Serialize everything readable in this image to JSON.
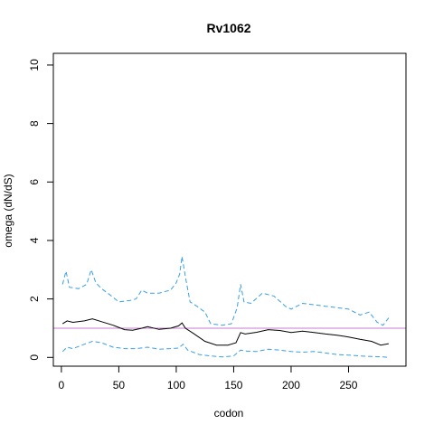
{
  "chart_data": {
    "type": "line",
    "title": "Rv1062",
    "xlabel": "codon",
    "ylabel": "omega (dN/dS)",
    "xlim": [
      -7,
      300
    ],
    "ylim": [
      -0.3,
      10.4
    ],
    "x_ticks": [
      0,
      50,
      100,
      150,
      200,
      250
    ],
    "y_ticks": [
      0,
      2,
      4,
      6,
      8,
      10
    ],
    "grid": false,
    "reference_line": {
      "y": 1,
      "color": "#c77dd1"
    },
    "series": [
      {
        "role": "estimate",
        "color": "#000000",
        "dash": "solid",
        "points": [
          [
            1,
            1.15
          ],
          [
            5,
            1.25
          ],
          [
            10,
            1.2
          ],
          [
            20,
            1.25
          ],
          [
            27,
            1.32
          ],
          [
            35,
            1.22
          ],
          [
            45,
            1.1
          ],
          [
            55,
            0.95
          ],
          [
            62,
            0.93
          ],
          [
            70,
            1.0
          ],
          [
            75,
            1.05
          ],
          [
            85,
            0.96
          ],
          [
            95,
            1.0
          ],
          [
            102,
            1.08
          ],
          [
            105,
            1.18
          ],
          [
            108,
            1.0
          ],
          [
            115,
            0.82
          ],
          [
            125,
            0.55
          ],
          [
            135,
            0.42
          ],
          [
            145,
            0.42
          ],
          [
            152,
            0.5
          ],
          [
            156,
            0.85
          ],
          [
            160,
            0.8
          ],
          [
            170,
            0.86
          ],
          [
            180,
            0.95
          ],
          [
            190,
            0.92
          ],
          [
            200,
            0.85
          ],
          [
            210,
            0.9
          ],
          [
            220,
            0.85
          ],
          [
            230,
            0.8
          ],
          [
            240,
            0.76
          ],
          [
            250,
            0.7
          ],
          [
            260,
            0.62
          ],
          [
            270,
            0.55
          ],
          [
            278,
            0.42
          ],
          [
            285,
            0.47
          ]
        ]
      },
      {
        "role": "upper-bound",
        "color": "#3c9ee0",
        "dash": "dashed",
        "points": [
          [
            1,
            2.5
          ],
          [
            4,
            2.95
          ],
          [
            7,
            2.4
          ],
          [
            15,
            2.35
          ],
          [
            22,
            2.5
          ],
          [
            26,
            3.0
          ],
          [
            30,
            2.55
          ],
          [
            35,
            2.35
          ],
          [
            42,
            2.15
          ],
          [
            50,
            1.9
          ],
          [
            60,
            1.95
          ],
          [
            65,
            2.0
          ],
          [
            70,
            2.3
          ],
          [
            75,
            2.2
          ],
          [
            85,
            2.2
          ],
          [
            95,
            2.3
          ],
          [
            100,
            2.55
          ],
          [
            103,
            2.85
          ],
          [
            105,
            3.45
          ],
          [
            108,
            2.75
          ],
          [
            112,
            1.9
          ],
          [
            118,
            1.75
          ],
          [
            125,
            1.55
          ],
          [
            130,
            1.15
          ],
          [
            140,
            1.1
          ],
          [
            148,
            1.15
          ],
          [
            153,
            1.7
          ],
          [
            156,
            2.5
          ],
          [
            159,
            1.9
          ],
          [
            165,
            1.85
          ],
          [
            175,
            2.2
          ],
          [
            185,
            2.1
          ],
          [
            195,
            1.75
          ],
          [
            200,
            1.65
          ],
          [
            210,
            1.85
          ],
          [
            220,
            1.8
          ],
          [
            230,
            1.75
          ],
          [
            240,
            1.7
          ],
          [
            250,
            1.65
          ],
          [
            260,
            1.45
          ],
          [
            268,
            1.55
          ],
          [
            275,
            1.2
          ],
          [
            280,
            1.1
          ],
          [
            285,
            1.35
          ]
        ]
      },
      {
        "role": "lower-bound",
        "color": "#3c9ee0",
        "dash": "dashed",
        "points": [
          [
            1,
            0.2
          ],
          [
            5,
            0.35
          ],
          [
            10,
            0.3
          ],
          [
            20,
            0.45
          ],
          [
            27,
            0.55
          ],
          [
            35,
            0.5
          ],
          [
            45,
            0.35
          ],
          [
            55,
            0.3
          ],
          [
            65,
            0.3
          ],
          [
            75,
            0.35
          ],
          [
            85,
            0.28
          ],
          [
            95,
            0.3
          ],
          [
            102,
            0.32
          ],
          [
            106,
            0.45
          ],
          [
            110,
            0.25
          ],
          [
            120,
            0.1
          ],
          [
            130,
            0.05
          ],
          [
            140,
            0.02
          ],
          [
            150,
            0.05
          ],
          [
            156,
            0.25
          ],
          [
            160,
            0.22
          ],
          [
            170,
            0.2
          ],
          [
            180,
            0.28
          ],
          [
            190,
            0.25
          ],
          [
            200,
            0.2
          ],
          [
            210,
            0.18
          ],
          [
            220,
            0.2
          ],
          [
            230,
            0.15
          ],
          [
            240,
            0.1
          ],
          [
            250,
            0.08
          ],
          [
            260,
            0.05
          ],
          [
            270,
            0.03
          ],
          [
            280,
            0.02
          ],
          [
            285,
            0.0
          ]
        ]
      }
    ]
  }
}
